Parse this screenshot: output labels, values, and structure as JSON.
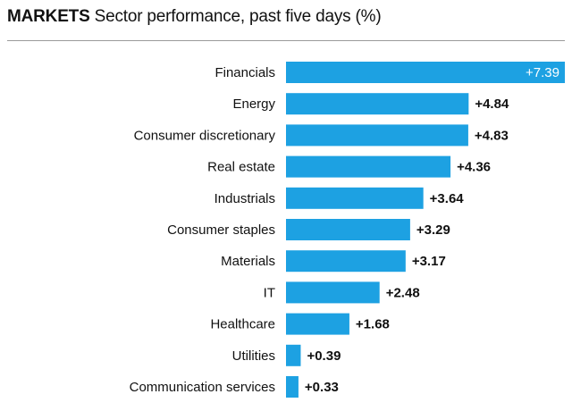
{
  "header": {
    "kicker": "MARKETS",
    "title": "Sector performance, past five days (%)"
  },
  "chart_data": {
    "type": "bar",
    "orientation": "horizontal",
    "title": "MARKETS Sector performance, past five days (%)",
    "categories": [
      "Financials",
      "Energy",
      "Consumer discretionary",
      "Real estate",
      "Industrials",
      "Consumer staples",
      "Materials",
      "IT",
      "Healthcare",
      "Utilities",
      "Communication services"
    ],
    "values": [
      7.39,
      4.84,
      4.83,
      4.36,
      3.64,
      3.29,
      3.17,
      2.48,
      1.68,
      0.39,
      0.33
    ],
    "labels": [
      "+7.39",
      "+4.84",
      "+4.83",
      "+4.36",
      "+3.64",
      "+3.29",
      "+3.17",
      "+2.48",
      "+1.68",
      "+0.39",
      "+0.33"
    ],
    "bar_color": "#1da1e2",
    "xlim": [
      0,
      7.39
    ],
    "grid": false,
    "legend": "none"
  }
}
